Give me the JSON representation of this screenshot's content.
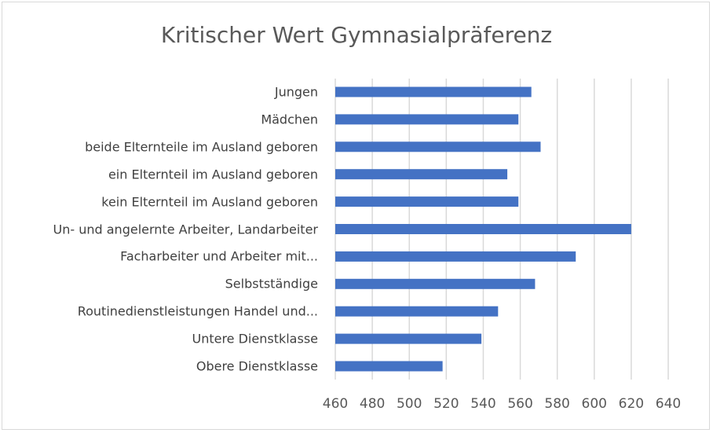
{
  "chart_data": {
    "type": "bar",
    "orientation": "horizontal",
    "title": "Kritischer Wert Gymnasialpräferenz",
    "categories": [
      "Jungen",
      "Mädchen",
      "beide Elternteile im Ausland geboren",
      "ein Elternteil im Ausland geboren",
      "kein Elternteil im Ausland geboren",
      "Un- und angelernte Arbeiter, Landarbeiter",
      "Facharbeiter und Arbeiter mit...",
      "Selbstständige",
      "Routinedienstleistungen Handel und...",
      "Untere Dienstklasse",
      "Obere Dienstklasse"
    ],
    "values": [
      566,
      559,
      571,
      553,
      559,
      620,
      590,
      568,
      548,
      539,
      518
    ],
    "xlim": [
      460,
      640
    ],
    "xticks": [
      "460",
      "480",
      "500",
      "520",
      "540",
      "560",
      "580",
      "600",
      "620",
      "640"
    ],
    "grid": true,
    "bar_color": "#4472c4",
    "xlabel": "",
    "ylabel": ""
  }
}
